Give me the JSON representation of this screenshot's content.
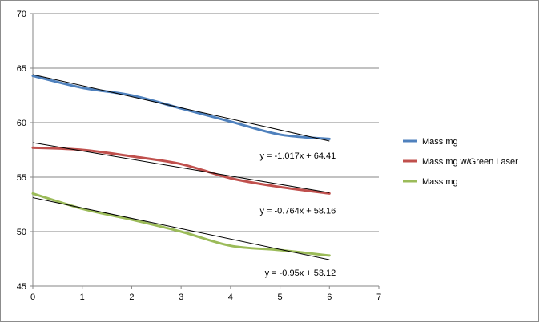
{
  "chart_data": {
    "type": "line",
    "title": "",
    "xlabel": "",
    "ylabel": "",
    "xlim": [
      0,
      7
    ],
    "ylim": [
      45,
      70
    ],
    "x_ticks": [
      "0",
      "1",
      "2",
      "3",
      "4",
      "5",
      "6",
      "7"
    ],
    "y_ticks": [
      "45",
      "50",
      "55",
      "60",
      "65",
      "70"
    ],
    "grid": "horizontal",
    "legend_position": "right",
    "x": [
      0,
      1,
      2,
      3,
      4,
      5,
      6
    ],
    "series": [
      {
        "name": "Mass mg",
        "color": "#4f81bd",
        "values": [
          64.3,
          63.2,
          62.5,
          61.3,
          60.1,
          58.9,
          58.5
        ],
        "trendline": {
          "slope": -1.017,
          "intercept": 64.41,
          "label": "y = -1.017x + 64.41"
        }
      },
      {
        "name": "Mass mg w/Green Laser",
        "color": "#c0504d",
        "values": [
          57.7,
          57.5,
          56.9,
          56.2,
          54.9,
          54.1,
          53.5
        ],
        "trendline": {
          "slope": -0.764,
          "intercept": 58.16,
          "label": "y = -0.764x + 58.16"
        }
      },
      {
        "name": "Mass mg",
        "color": "#9bbb59",
        "values": [
          53.5,
          52.1,
          51.1,
          50.0,
          48.7,
          48.3,
          47.8
        ],
        "trendline": {
          "slope": -0.95,
          "intercept": 53.12,
          "label": "y = -0.95x + 53.12"
        }
      }
    ],
    "trendline_color": "#000000"
  }
}
